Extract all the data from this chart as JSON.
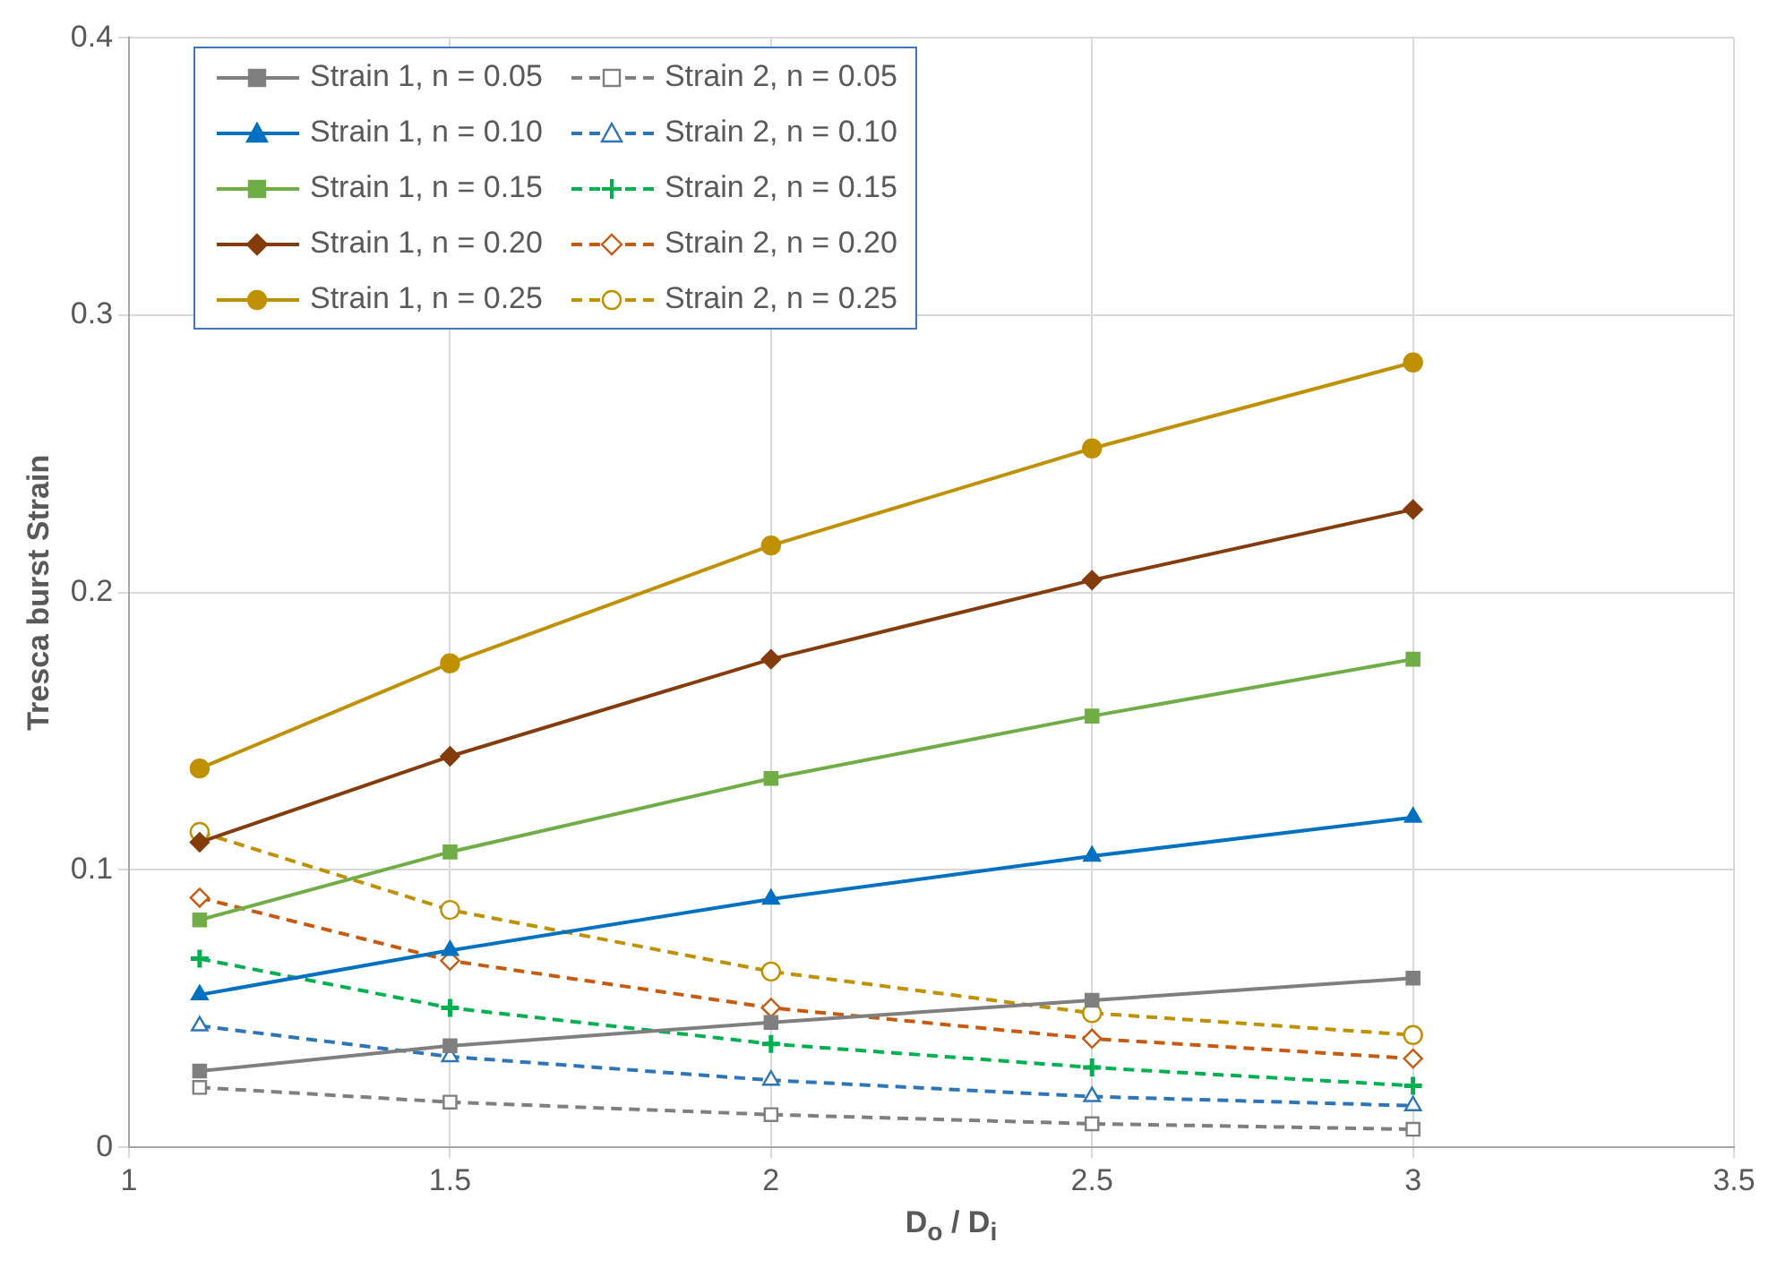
{
  "chart_data": {
    "type": "line",
    "xlabel": "D$_{o}$ / D$_{i}$",
    "ylabel": "Tresca burst Strain",
    "x": [
      1.11,
      1.5,
      2,
      2.5,
      3
    ],
    "xlim": [
      1,
      3.5
    ],
    "xticks": [
      1,
      1.5,
      2,
      2.5,
      3,
      3.5
    ],
    "ylim": [
      0,
      0.4
    ],
    "yticks": [
      0,
      0.1,
      0.2,
      0.3,
      0.4
    ],
    "grid": true,
    "legend": "top left",
    "series": [
      {
        "name": "Strain 1, n = 0.05",
        "color": "#7f7f7f",
        "marker": "square",
        "line_style": "solid",
        "values": [
          0.0275,
          0.0366,
          0.045,
          0.053,
          0.061
        ]
      },
      {
        "name": "Strain 1, n = 0.10",
        "color": "#0070c0",
        "marker": "triangle",
        "line_style": "solid",
        "values": [
          0.055,
          0.071,
          0.0895,
          0.105,
          0.119
        ]
      },
      {
        "name": "Strain 1, n = 0.15",
        "color": "#70ad47",
        "marker": "square",
        "line_style": "solid",
        "values": [
          0.082,
          0.1065,
          0.133,
          0.1555,
          0.176
        ]
      },
      {
        "name": "Strain 1, n = 0.20",
        "color": "#843c0c",
        "marker": "diamond",
        "line_style": "solid",
        "values": [
          0.11,
          0.141,
          0.176,
          0.2045,
          0.23
        ]
      },
      {
        "name": "Strain 1, n = 0.25",
        "color": "#bf9000",
        "marker": "circle",
        "line_style": "solid",
        "values": [
          0.1366,
          0.1745,
          0.217,
          0.252,
          0.283
        ]
      },
      {
        "name": "Strain 2, n = 0.05",
        "color": "#7f7f7f",
        "marker": "square",
        "line_style": "dashed",
        "values": [
          0.0216,
          0.0163,
          0.0118,
          0.0085,
          0.0065
        ]
      },
      {
        "name": "Strain 2, n = 0.10",
        "color": "#2e75b6",
        "marker": "triangle",
        "line_style": "dashed",
        "values": [
          0.0438,
          0.0327,
          0.0242,
          0.0183,
          0.015
        ]
      },
      {
        "name": "Strain 2, n = 0.15",
        "color": "#00b050",
        "marker": "cross",
        "line_style": "dashed",
        "values": [
          0.068,
          0.0503,
          0.0373,
          0.0288,
          0.0222
        ]
      },
      {
        "name": "Strain 2, n = 0.20",
        "color": "#c55a11",
        "marker": "diamond",
        "line_style": "dashed",
        "values": [
          0.09,
          0.0673,
          0.0503,
          0.0392,
          0.032
        ]
      },
      {
        "name": "Strain 2, n = 0.25",
        "color": "#bf9000",
        "marker": "circle",
        "line_style": "dashed",
        "values": [
          0.1137,
          0.0856,
          0.0634,
          0.0484,
          0.0405
        ]
      }
    ]
  }
}
